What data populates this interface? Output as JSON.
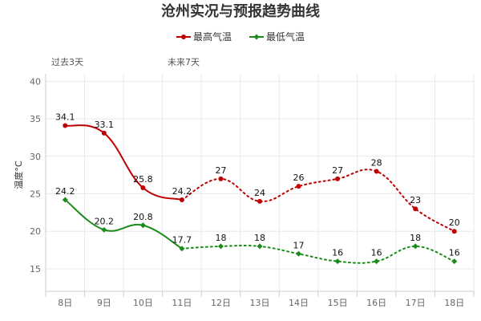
{
  "title": "沧州实况与预报趋势曲线",
  "legend": [
    {
      "label": "最高气温",
      "color": "#c00000"
    },
    {
      "label": "最低气温",
      "color": "#1a8c1a"
    }
  ],
  "periods": {
    "past": "过去3天",
    "future": "未来7天"
  },
  "chart_data": {
    "type": "line",
    "title": "沧州实况与预报趋势曲线",
    "xlabel": "",
    "ylabel": "温度°C",
    "categories": [
      "8日",
      "9日",
      "10日",
      "11日",
      "12日",
      "13日",
      "14日",
      "15日",
      "16日",
      "17日",
      "18日"
    ],
    "ylim": [
      12,
      41
    ],
    "yticks": [
      15,
      20,
      25,
      30,
      35,
      40
    ],
    "grid": true,
    "legend_position": "top-center",
    "observed_last_index": 3,
    "series": [
      {
        "name": "最高气温",
        "color": "#c00000",
        "values": [
          34.1,
          33.1,
          25.8,
          24.2,
          27,
          24,
          26,
          27,
          28,
          23,
          20
        ]
      },
      {
        "name": "最低气温",
        "color": "#1a8c1a",
        "values": [
          24.2,
          20.2,
          20.8,
          17.7,
          18,
          18,
          17,
          16,
          16,
          18,
          16
        ]
      }
    ]
  }
}
